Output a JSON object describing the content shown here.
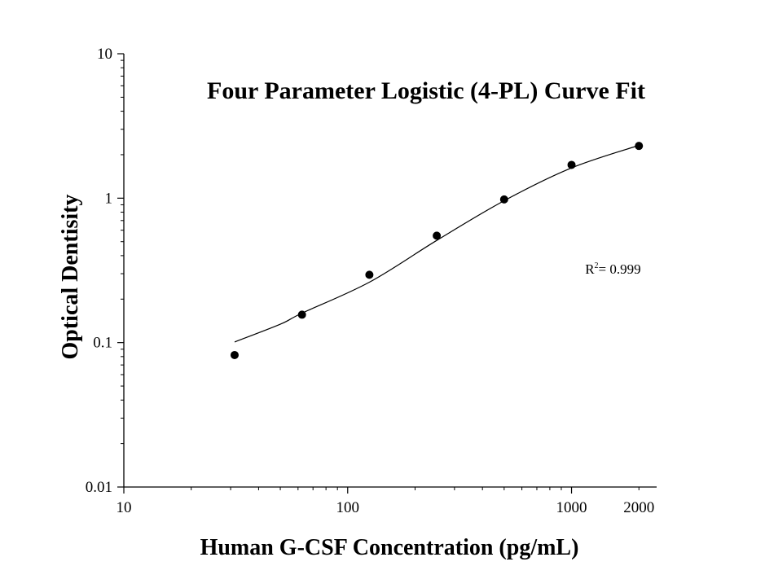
{
  "chart_data": {
    "type": "scatter",
    "title": "Four Parameter Logistic (4-PL) Curve Fit",
    "xlabel": "Human G-CSF Concentration (pg/mL)",
    "ylabel": "Optical Dentisity",
    "x_scale": "log",
    "y_scale": "log",
    "xlim": [
      10,
      2400
    ],
    "ylim": [
      0.01,
      10
    ],
    "x_ticks": [
      {
        "value": 10,
        "label": "10"
      },
      {
        "value": 100,
        "label": "100"
      },
      {
        "value": 1000,
        "label": "1000"
      },
      {
        "value": 2000,
        "label": "2000"
      }
    ],
    "y_ticks": [
      {
        "value": 0.01,
        "label": "0.01"
      },
      {
        "value": 0.1,
        "label": "0.1"
      },
      {
        "value": 1,
        "label": "1"
      },
      {
        "value": 10,
        "label": "10"
      }
    ],
    "grid": false,
    "legend": "none",
    "series": [
      {
        "kind": "points",
        "x": [
          31.25,
          62.5,
          125,
          250,
          500,
          1000,
          2000
        ],
        "y": [
          0.082,
          0.156,
          0.295,
          0.55,
          0.98,
          1.7,
          2.3
        ]
      },
      {
        "kind": "fit-curve",
        "x": [
          31.25,
          50,
          62.5,
          125,
          250,
          500,
          1000,
          2000
        ],
        "y": [
          0.101,
          0.134,
          0.16,
          0.262,
          0.51,
          0.96,
          1.62,
          2.32
        ]
      }
    ],
    "annotation": {
      "r_label": "R",
      "r_exponent": "2",
      "r_value": "= 0.999",
      "position_x": 1150,
      "position_y": 0.3
    },
    "colors": {
      "axis": "#000000",
      "points": "#000000",
      "curve": "#000000",
      "background": "#ffffff"
    }
  }
}
